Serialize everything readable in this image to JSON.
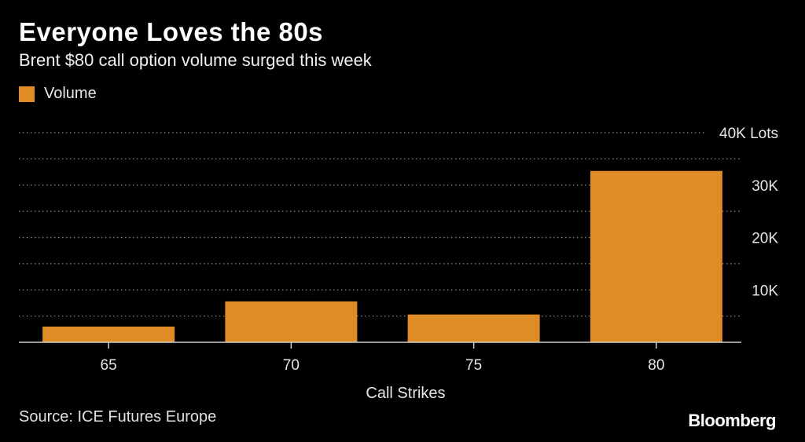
{
  "title": "Everyone Loves the 80s",
  "subtitle": "Brent $80 call option volume surged this week",
  "legend": {
    "label": "Volume",
    "color": "#E08C26"
  },
  "source": "Source: ICE Futures Europe",
  "brand": "Bloomberg",
  "chart_data": {
    "type": "bar",
    "categories": [
      "65",
      "70",
      "75",
      "80"
    ],
    "series": [
      {
        "name": "Volume",
        "values": [
          3000,
          7800,
          5300,
          32700
        ]
      }
    ],
    "xlabel": "Call Strikes",
    "ylabel": "",
    "ylim": [
      0,
      40000
    ],
    "y_ticks": [
      {
        "value": 10000,
        "label": "10K"
      },
      {
        "value": 20000,
        "label": "20K"
      },
      {
        "value": 30000,
        "label": "30K"
      },
      {
        "value": 40000,
        "label": "40K Lots"
      }
    ],
    "minor_gridline_step": 5000,
    "grid": true,
    "legend_position": "top-left",
    "bar_color": "#E08C26",
    "gridline_color": "#8a8a8a",
    "axis_color": "#d0d0d0"
  }
}
